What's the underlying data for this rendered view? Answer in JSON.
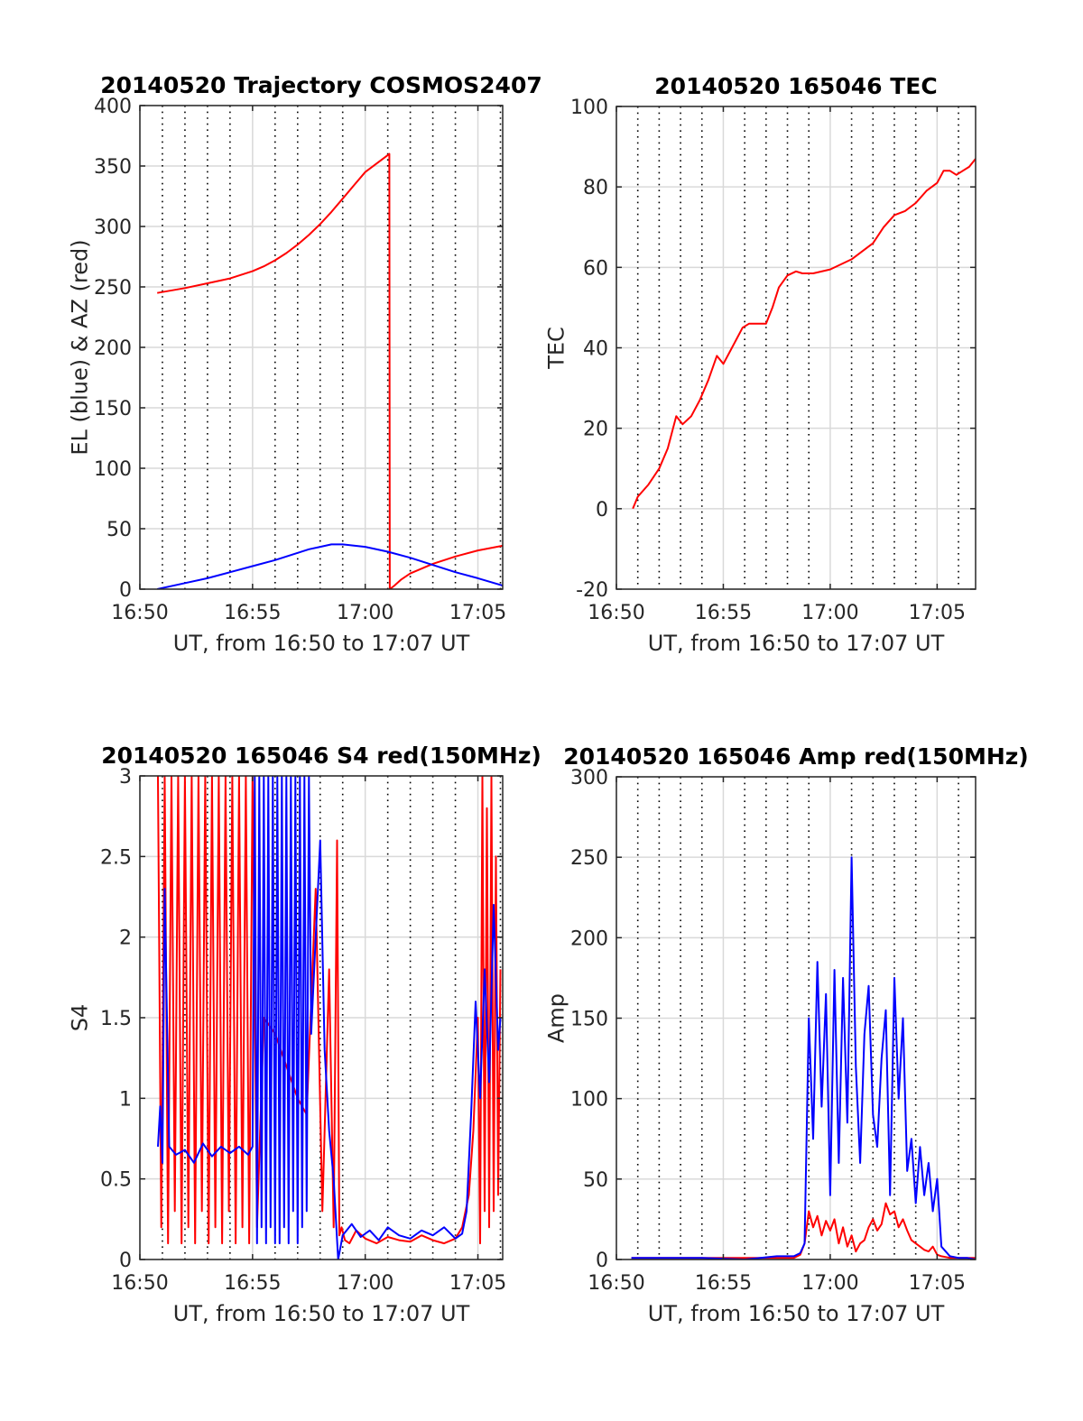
{
  "figure": {
    "background": "#ffffff",
    "grid_color": "#d9d9d9",
    "minor_grid_color": "#000000",
    "axis_color": "#262626"
  },
  "chart_data": [
    {
      "type": "line",
      "title": "20140520 Trajectory COSMOS2407",
      "xlabel": "UT, from 16:50 to 17:07 UT",
      "ylabel": "EL (blue) & AZ (red)",
      "x_unit": "minutes after 16:50 UT",
      "xlim": [
        0,
        16.1
      ],
      "ylim": [
        0,
        400
      ],
      "xticks": [
        0,
        5,
        10,
        15
      ],
      "xtick_labels": [
        "16:50",
        "16:55",
        "17:00",
        "17:05"
      ],
      "yticks": [
        0,
        50,
        100,
        150,
        200,
        250,
        300,
        350,
        400
      ],
      "ytick_labels": [
        "0",
        "50",
        "100",
        "150",
        "200",
        "250",
        "300",
        "350",
        "400"
      ],
      "grid": true,
      "minor_grid_dotted": true,
      "series": [
        {
          "color": "#ff0000",
          "x": [
            0.77,
            2,
            3,
            4,
            5,
            5.5,
            6,
            6.5,
            7,
            7.5,
            8,
            8.5,
            9,
            9.5,
            10,
            10.5,
            11,
            11.07,
            11.09,
            11.3,
            11.6,
            12,
            13,
            14,
            15,
            16.1
          ],
          "y": [
            245,
            249,
            253,
            257,
            263,
            267,
            272,
            278,
            285,
            293,
            302,
            312,
            323,
            334,
            345,
            352,
            359,
            360,
            0,
            3,
            8,
            13,
            21,
            27,
            32,
            36
          ]
        },
        {
          "color": "#0000ff",
          "x": [
            0.77,
            2,
            3,
            4,
            5,
            6,
            7,
            7.5,
            8,
            8.5,
            9,
            9.5,
            10,
            11,
            12,
            13,
            14,
            15,
            16.1
          ],
          "y": [
            0,
            5,
            9,
            14,
            19,
            24,
            30,
            33,
            35,
            37,
            37,
            36,
            35,
            31,
            26,
            20,
            14,
            9,
            3
          ]
        }
      ]
    },
    {
      "type": "line",
      "title": "20140520 165046 TEC",
      "xlabel": "UT, from 16:50 to 17:07 UT",
      "ylabel": "TEC",
      "x_unit": "minutes after 16:50 UT",
      "xlim": [
        0,
        16.8
      ],
      "ylim": [
        -20,
        100
      ],
      "xticks": [
        0,
        5,
        10,
        15
      ],
      "xtick_labels": [
        "16:50",
        "16:55",
        "17:00",
        "17:05"
      ],
      "yticks": [
        -20,
        0,
        20,
        40,
        60,
        80,
        100
      ],
      "ytick_labels": [
        "-20",
        "0",
        "20",
        "40",
        "60",
        "80",
        "100"
      ],
      "grid": true,
      "minor_grid_dotted": true,
      "series": [
        {
          "color": "#ff0000",
          "x": [
            0.77,
            1.0,
            1.5,
            2.0,
            2.4,
            2.8,
            3.1,
            3.5,
            3.9,
            4.3,
            4.7,
            5.0,
            5.3,
            5.6,
            5.9,
            6.2,
            6.6,
            7.0,
            7.3,
            7.6,
            8.0,
            8.4,
            8.7,
            9.2,
            10,
            11,
            12,
            12.5,
            13,
            13.5,
            14,
            14.5,
            15,
            15.3,
            15.6,
            15.9,
            16.2,
            16.5,
            16.8
          ],
          "y": [
            0,
            3,
            6,
            10,
            15,
            23,
            21,
            23,
            27,
            32,
            38,
            36,
            39,
            42,
            45,
            46,
            46,
            46,
            50,
            55,
            58,
            59,
            58.5,
            58.5,
            59.5,
            62,
            66,
            70,
            73,
            74,
            76,
            79,
            81,
            84,
            84,
            83,
            84,
            85,
            87
          ]
        }
      ]
    },
    {
      "type": "line",
      "title": "20140520 165046 S4 red(150MHz)",
      "xlabel": "UT, from 16:50 to 17:07 UT",
      "ylabel": "S4",
      "x_unit": "minutes after 16:50 UT",
      "xlim": [
        0,
        16.1
      ],
      "ylim": [
        0,
        3
      ],
      "xticks": [
        0,
        5,
        10,
        15
      ],
      "xtick_labels": [
        "16:50",
        "16:55",
        "17:00",
        "17:05"
      ],
      "yticks": [
        0,
        0.5,
        1,
        1.5,
        2,
        2.5,
        3
      ],
      "ytick_labels": [
        "0",
        "0.5",
        "1",
        "1.5",
        "2",
        "2.5",
        "3"
      ],
      "grid": true,
      "minor_grid_dotted": true,
      "series": [
        {
          "color": "#ff0000",
          "x": [
            0.8,
            0.95,
            1.1,
            1.25,
            1.4,
            1.55,
            1.7,
            1.85,
            2.0,
            2.15,
            2.3,
            2.45,
            2.6,
            2.75,
            2.9,
            3.05,
            3.2,
            3.35,
            3.5,
            3.65,
            3.8,
            3.95,
            4.1,
            4.25,
            4.4,
            4.55,
            4.7,
            4.85,
            5.0,
            5.2,
            5.5,
            6.0,
            6.5,
            7.0,
            7.4,
            7.8,
            8.1,
            8.4,
            8.6,
            8.75,
            8.85,
            8.95,
            9.1,
            9.3,
            9.6,
            10,
            10.5,
            11,
            11.5,
            12,
            12.5,
            13,
            13.5,
            14,
            14.3,
            14.6,
            14.8,
            15.0,
            15.1,
            15.2,
            15.3,
            15.4,
            15.5,
            15.6,
            15.7,
            15.8,
            15.9,
            16.0
          ],
          "y": [
            3,
            0.2,
            3,
            0.1,
            3,
            0.3,
            3,
            0.1,
            3,
            0.2,
            3,
            0.1,
            3,
            0.3,
            3,
            0.1,
            3,
            0.2,
            3,
            0.1,
            3,
            0.3,
            3,
            0.1,
            3,
            0.2,
            3,
            0.1,
            3,
            0.2,
            1.5,
            1.4,
            1.2,
            1.0,
            0.9,
            2.3,
            0.3,
            1.8,
            0.2,
            2.6,
            0.15,
            0.2,
            0.12,
            0.1,
            0.18,
            0.13,
            0.1,
            0.14,
            0.12,
            0.11,
            0.15,
            0.12,
            0.1,
            0.13,
            0.2,
            0.4,
            0.8,
            1.5,
            0.1,
            3,
            0.3,
            2.8,
            0.2,
            3,
            0.3,
            2.5,
            0.4,
            1.8
          ]
        },
        {
          "color": "#0000ff",
          "x": [
            0.8,
            0.9,
            1.0,
            1.1,
            1.3,
            1.6,
            2.0,
            2.4,
            2.8,
            3.2,
            3.6,
            4.0,
            4.4,
            4.8,
            5.0,
            5.1,
            5.2,
            5.3,
            5.4,
            5.5,
            5.6,
            5.7,
            5.8,
            5.9,
            6.0,
            6.1,
            6.2,
            6.3,
            6.4,
            6.5,
            6.6,
            6.7,
            6.8,
            6.9,
            7.0,
            7.1,
            7.2,
            7.3,
            7.4,
            7.5,
            7.6,
            7.8,
            8.0,
            8.2,
            8.4,
            8.6,
            8.8,
            9.0,
            9.4,
            9.8,
            10.2,
            10.6,
            11,
            11.5,
            12,
            12.5,
            13,
            13.5,
            14,
            14.3,
            14.5,
            14.7,
            14.9,
            15.1,
            15.3,
            15.5,
            15.7,
            15.9,
            16.0
          ],
          "y": [
            0.7,
            0.95,
            0.6,
            2.3,
            0.7,
            0.65,
            0.68,
            0.6,
            0.72,
            0.64,
            0.7,
            0.66,
            0.7,
            0.65,
            0.7,
            3,
            0.1,
            3,
            0.2,
            3,
            0.1,
            3,
            0.2,
            3,
            0.1,
            3,
            0.1,
            3,
            0.2,
            3,
            0.1,
            3,
            0.3,
            3,
            0.1,
            3,
            0.2,
            3,
            0.3,
            3,
            1.4,
            2.0,
            2.6,
            1.3,
            0.8,
            0.5,
            0.0,
            0.15,
            0.22,
            0.14,
            0.18,
            0.12,
            0.2,
            0.15,
            0.13,
            0.18,
            0.15,
            0.2,
            0.13,
            0.16,
            0.3,
            0.9,
            1.6,
            1.0,
            1.8,
            1.1,
            2.2,
            1.3,
            1.5
          ]
        }
      ]
    },
    {
      "type": "line",
      "title": "20140520 165046 Amp red(150MHz)",
      "xlabel": "UT, from 16:50 to 17:07 UT",
      "ylabel": "Amp",
      "x_unit": "minutes after 16:50 UT",
      "xlim": [
        0,
        16.8
      ],
      "ylim": [
        0,
        300
      ],
      "xticks": [
        0,
        5,
        10,
        15
      ],
      "xtick_labels": [
        "16:50",
        "16:55",
        "17:00",
        "17:05"
      ],
      "yticks": [
        0,
        50,
        100,
        150,
        200,
        250,
        300
      ],
      "ytick_labels": [
        "0",
        "50",
        "100",
        "150",
        "200",
        "250",
        "300"
      ],
      "grid": true,
      "minor_grid_dotted": true,
      "series": [
        {
          "color": "#ff0000",
          "x": [
            0.7,
            3,
            6,
            8.3,
            8.6,
            8.8,
            9.0,
            9.2,
            9.4,
            9.6,
            9.8,
            10.0,
            10.2,
            10.4,
            10.6,
            10.8,
            11.0,
            11.2,
            11.4,
            11.6,
            11.8,
            12.0,
            12.2,
            12.4,
            12.6,
            12.8,
            13.0,
            13.2,
            13.4,
            13.6,
            13.8,
            14.0,
            14.2,
            14.4,
            14.6,
            14.8,
            15.0,
            15.2,
            15.6,
            16.0,
            16.4,
            16.8
          ],
          "y": [
            1,
            1,
            1,
            1,
            3,
            10,
            30,
            20,
            27,
            15,
            24,
            18,
            25,
            10,
            20,
            8,
            15,
            5,
            10,
            12,
            20,
            25,
            18,
            22,
            35,
            28,
            30,
            20,
            25,
            18,
            12,
            10,
            8,
            6,
            5,
            8,
            3,
            2,
            1,
            1,
            1,
            1
          ]
        },
        {
          "color": "#0000ff",
          "x": [
            0.7,
            2,
            4,
            6,
            7.5,
            8.3,
            8.6,
            8.8,
            9.0,
            9.2,
            9.4,
            9.6,
            9.8,
            10.0,
            10.2,
            10.4,
            10.6,
            10.8,
            11.0,
            11.2,
            11.4,
            11.6,
            11.8,
            12.0,
            12.2,
            12.4,
            12.6,
            12.8,
            13.0,
            13.2,
            13.4,
            13.6,
            13.8,
            14.0,
            14.2,
            14.4,
            14.6,
            14.8,
            15.0,
            15.2,
            15.6,
            16.0,
            16.4,
            16.8
          ],
          "y": [
            1,
            1,
            1,
            0,
            2,
            2,
            4,
            10,
            150,
            75,
            185,
            95,
            165,
            40,
            180,
            60,
            175,
            85,
            250,
            120,
            60,
            140,
            170,
            90,
            70,
            125,
            155,
            40,
            175,
            100,
            150,
            55,
            75,
            35,
            70,
            40,
            60,
            30,
            50,
            8,
            2,
            1,
            1,
            0
          ]
        }
      ]
    }
  ]
}
